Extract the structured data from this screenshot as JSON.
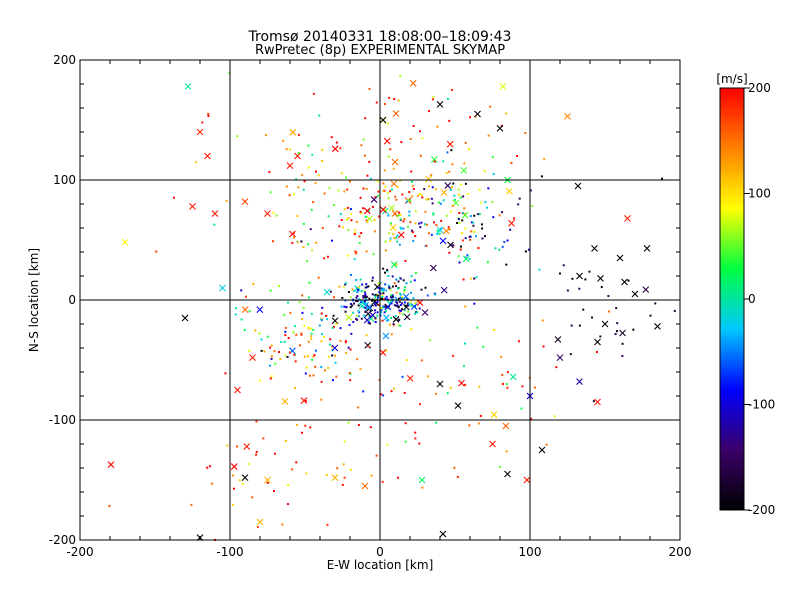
{
  "chart_data": {
    "type": "scatter",
    "title": "Tromsø 20140331 18:08:00–18:09:43",
    "subtitle": "RwPretec (8p) EXPERIMENTAL SKYMAP",
    "xlabel": "E-W location [km]",
    "ylabel": "N-S location [km]",
    "xlim": [
      -200,
      200
    ],
    "ylim": [
      -200,
      200
    ],
    "xticks": [
      "-200",
      "-100",
      "0",
      "100",
      "200"
    ],
    "yticks": [
      "-200",
      "-100",
      "0",
      "100",
      "200"
    ],
    "grid": true,
    "colorbar": {
      "label": "[m/s]",
      "range": [
        -200,
        200
      ],
      "ticks": [
        "200",
        "100",
        "0",
        "-100",
        "-200"
      ],
      "colormap": [
        "#000000",
        "#3a006a",
        "#0000ff",
        "#00c8ff",
        "#00ff40",
        "#ffff00",
        "#ff8000",
        "#ff0000"
      ]
    },
    "marker_types": [
      "dot",
      "x"
    ],
    "clusters": [
      {
        "cx": 0,
        "cy": 0,
        "sx": 14,
        "sy": 10,
        "n": 260,
        "vmean": -80,
        "vsd": 90
      },
      {
        "cx": 22,
        "cy": 70,
        "sx": 28,
        "sy": 18,
        "n": 160,
        "vmean": 90,
        "vsd": 90
      },
      {
        "cx": 60,
        "cy": 55,
        "sx": 22,
        "sy": 25,
        "n": 70,
        "vmean": -120,
        "vsd": 80
      },
      {
        "cx": -45,
        "cy": -35,
        "sx": 25,
        "sy": 22,
        "n": 120,
        "vmean": 80,
        "vsd": 110
      },
      {
        "cx": -30,
        "cy": 80,
        "sx": 50,
        "sy": 50,
        "n": 120,
        "vmean": 130,
        "vsd": 80
      },
      {
        "cx": -60,
        "cy": -120,
        "sx": 45,
        "sy": 45,
        "n": 80,
        "vmean": 160,
        "vsd": 50
      },
      {
        "cx": 30,
        "cy": 130,
        "sx": 40,
        "sy": 35,
        "n": 60,
        "vmean": 150,
        "vsd": 70
      },
      {
        "cx": 150,
        "cy": -15,
        "sx": 22,
        "sy": 30,
        "n": 30,
        "vmean": -180,
        "vsd": 20
      },
      {
        "cx": 60,
        "cy": -60,
        "sx": 40,
        "sy": 40,
        "n": 60,
        "vmean": 120,
        "vsd": 100
      }
    ],
    "marked_points": [
      {
        "x": -120,
        "y": 140,
        "v": 180,
        "m": "x"
      },
      {
        "x": -128,
        "y": 178,
        "v": 0,
        "m": "x"
      },
      {
        "x": -115,
        "y": 120,
        "v": 190,
        "m": "x"
      },
      {
        "x": -125,
        "y": 78,
        "v": 190,
        "m": "x"
      },
      {
        "x": -110,
        "y": 72,
        "v": 190,
        "m": "x"
      },
      {
        "x": -170,
        "y": 48,
        "v": 90,
        "m": "x"
      },
      {
        "x": -90,
        "y": 82,
        "v": 170,
        "m": "x"
      },
      {
        "x": -75,
        "y": 72,
        "v": 190,
        "m": "x"
      },
      {
        "x": -60,
        "y": 112,
        "v": 190,
        "m": "x"
      },
      {
        "x": -55,
        "y": 120,
        "v": 190,
        "m": "x"
      },
      {
        "x": 165,
        "y": 68,
        "v": 190,
        "m": "x"
      },
      {
        "x": 125,
        "y": 153,
        "v": 140,
        "m": "x"
      },
      {
        "x": 132,
        "y": 95,
        "v": -200,
        "m": "x"
      },
      {
        "x": 143,
        "y": 43,
        "v": -200,
        "m": "x"
      },
      {
        "x": 160,
        "y": 35,
        "v": -200,
        "m": "x"
      },
      {
        "x": 178,
        "y": 43,
        "v": -200,
        "m": "x"
      },
      {
        "x": 185,
        "y": -22,
        "v": -200,
        "m": "x"
      },
      {
        "x": 170,
        "y": 5,
        "v": -200,
        "m": "x"
      },
      {
        "x": 163,
        "y": 15,
        "v": -200,
        "m": "x"
      },
      {
        "x": 147,
        "y": 18,
        "v": -200,
        "m": "x"
      },
      {
        "x": 133,
        "y": 20,
        "v": -200,
        "m": "x"
      },
      {
        "x": 150,
        "y": -20,
        "v": -200,
        "m": "x"
      },
      {
        "x": 145,
        "y": -35,
        "v": -200,
        "m": "x"
      },
      {
        "x": 120,
        "y": -48,
        "v": -140,
        "m": "x"
      },
      {
        "x": 133,
        "y": -68,
        "v": -120,
        "m": "x"
      },
      {
        "x": 145,
        "y": -85,
        "v": 190,
        "m": "x"
      },
      {
        "x": 98,
        "y": -150,
        "v": 190,
        "m": "x"
      },
      {
        "x": 85,
        "y": -145,
        "v": -200,
        "m": "x"
      },
      {
        "x": 42,
        "y": -195,
        "v": -200,
        "m": "x"
      },
      {
        "x": 75,
        "y": -120,
        "v": 190,
        "m": "x"
      },
      {
        "x": 52,
        "y": -88,
        "v": -200,
        "m": "x"
      },
      {
        "x": 40,
        "y": -70,
        "v": -190,
        "m": "x"
      },
      {
        "x": -120,
        "y": -198,
        "v": -200,
        "m": "x"
      },
      {
        "x": -80,
        "y": -185,
        "v": 120,
        "m": "x"
      },
      {
        "x": -90,
        "y": -148,
        "v": -200,
        "m": "x"
      },
      {
        "x": -75,
        "y": -150,
        "v": 120,
        "m": "x"
      },
      {
        "x": -30,
        "y": -148,
        "v": 120,
        "m": "x"
      },
      {
        "x": -10,
        "y": -155,
        "v": 150,
        "m": "x"
      },
      {
        "x": 28,
        "y": -150,
        "v": 20,
        "m": "x"
      },
      {
        "x": -85,
        "y": -48,
        "v": 190,
        "m": "x"
      },
      {
        "x": -95,
        "y": -75,
        "v": 190,
        "m": "x"
      },
      {
        "x": -130,
        "y": -15,
        "v": -200,
        "m": "x"
      },
      {
        "x": -105,
        "y": 10,
        "v": -20,
        "m": "x"
      },
      {
        "x": 40,
        "y": 163,
        "v": -200,
        "m": "x"
      },
      {
        "x": 65,
        "y": 155,
        "v": -200,
        "m": "x"
      },
      {
        "x": 80,
        "y": 143,
        "v": -200,
        "m": "x"
      },
      {
        "x": 82,
        "y": 178,
        "v": 80,
        "m": "x"
      },
      {
        "x": 85,
        "y": 100,
        "v": 30,
        "m": "x"
      },
      {
        "x": 2,
        "y": 150,
        "v": -200,
        "m": "x"
      },
      {
        "x": 10,
        "y": 115,
        "v": 150,
        "m": "x"
      },
      {
        "x": 100,
        "y": -80,
        "v": -100,
        "m": "x"
      },
      {
        "x": 108,
        "y": -125,
        "v": -200,
        "m": "x"
      },
      {
        "x": 188,
        "y": 101,
        "v": -200,
        "m": "dot"
      },
      {
        "x": 108,
        "y": 103,
        "v": -200,
        "m": "dot"
      }
    ]
  }
}
